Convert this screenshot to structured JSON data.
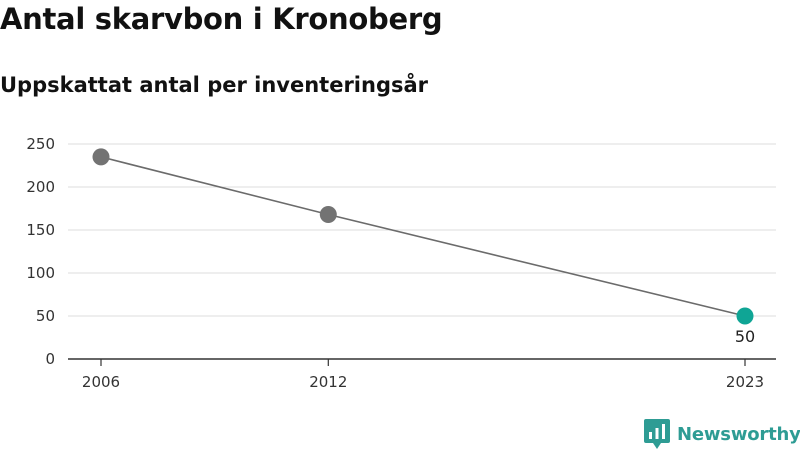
{
  "header": {
    "title": "Antal skarvbon i Kronoberg",
    "subtitle": "Uppskattat antal per inventeringsår"
  },
  "brand": {
    "name": "Newsworthy",
    "icon": "newsworthy-logo-icon"
  },
  "colors": {
    "line": "#6b6b6b",
    "point": "#737373",
    "highlight": "#0fa595",
    "grid": "#dddddd",
    "axis": "#333333"
  },
  "chart_data": {
    "type": "line",
    "title": "Antal skarvbon i Kronoberg",
    "subtitle": "Uppskattat antal per inventeringsår",
    "xlabel": "",
    "ylabel": "",
    "x": [
      2006,
      2012,
      2023
    ],
    "values": [
      235,
      168,
      50
    ],
    "xlim": [
      2006,
      2023
    ],
    "ylim": [
      0,
      250
    ],
    "yticks": [
      0,
      50,
      100,
      150,
      200,
      250
    ],
    "xticks": [
      2006,
      2012,
      2023
    ],
    "grid": true,
    "highlight_last": true,
    "data_labels": [
      {
        "index": 2,
        "text": "50"
      }
    ]
  }
}
